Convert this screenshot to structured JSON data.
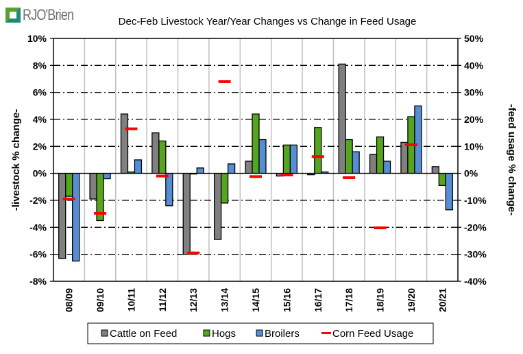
{
  "brand": {
    "name": "RJO'Brien",
    "colors": {
      "green": "#5a9f2f",
      "teal": "#1f8a77",
      "text": "#6f6f6f"
    }
  },
  "chart_data": {
    "type": "bar",
    "title": "Dec-Feb Livestock Year/Year Changes vs Change in Feed Usage",
    "ylabel": "-livestock % change-",
    "y2label": "-feed usage % change-",
    "xlabel": "",
    "categories": [
      "08/09",
      "09/10",
      "10/11",
      "11/12",
      "12/13",
      "13/14",
      "14/15",
      "15/16",
      "16/17",
      "17/18",
      "18/19",
      "19/20",
      "20/21"
    ],
    "ylim": [
      -8,
      10
    ],
    "yticks": [
      -8,
      -6,
      -4,
      -2,
      0,
      2,
      4,
      6,
      8,
      10
    ],
    "ytick_labels": [
      "-8%",
      "-6%",
      "-4%",
      "-2%",
      "0%",
      "2%",
      "4%",
      "6%",
      "8%",
      "10%"
    ],
    "y2lim": [
      -40,
      50
    ],
    "y2ticks": [
      -40,
      -30,
      -20,
      -10,
      0,
      10,
      20,
      30,
      40,
      50
    ],
    "y2tick_labels": [
      "-40%",
      "-30%",
      "-20%",
      "-10%",
      "0%",
      "10%",
      "20%",
      "30%",
      "40%",
      "50%"
    ],
    "grid": true,
    "legend_position": "bottom",
    "series": [
      {
        "name": "Cattle on Feed",
        "type": "bar",
        "axis": "left",
        "color": "#808080",
        "values": [
          -6.3,
          -1.9,
          4.4,
          3.0,
          -6.0,
          -4.9,
          0.9,
          -0.2,
          -0.1,
          8.1,
          1.4,
          2.3,
          0.5
        ]
      },
      {
        "name": "Hogs",
        "type": "bar",
        "axis": "left",
        "color": "#55a51f",
        "values": [
          -1.7,
          -3.5,
          0.1,
          2.4,
          0.0,
          -2.2,
          4.4,
          2.1,
          3.4,
          2.5,
          2.7,
          4.2,
          -0.9
        ]
      },
      {
        "name": "Broilers",
        "type": "bar",
        "axis": "left",
        "color": "#558ed5",
        "values": [
          -6.5,
          -0.4,
          1.0,
          -2.4,
          0.4,
          0.7,
          2.5,
          2.1,
          0.1,
          1.6,
          0.9,
          5.0,
          -2.7
        ]
      },
      {
        "name": "Corn Feed Usage",
        "type": "marker",
        "axis": "right",
        "color": "#ff0000",
        "values": [
          -9.5,
          -14.8,
          16.5,
          -1.0,
          -29.5,
          34.0,
          -1.2,
          -0.6,
          6.2,
          -1.6,
          -20.2,
          10.6,
          null
        ]
      }
    ]
  }
}
